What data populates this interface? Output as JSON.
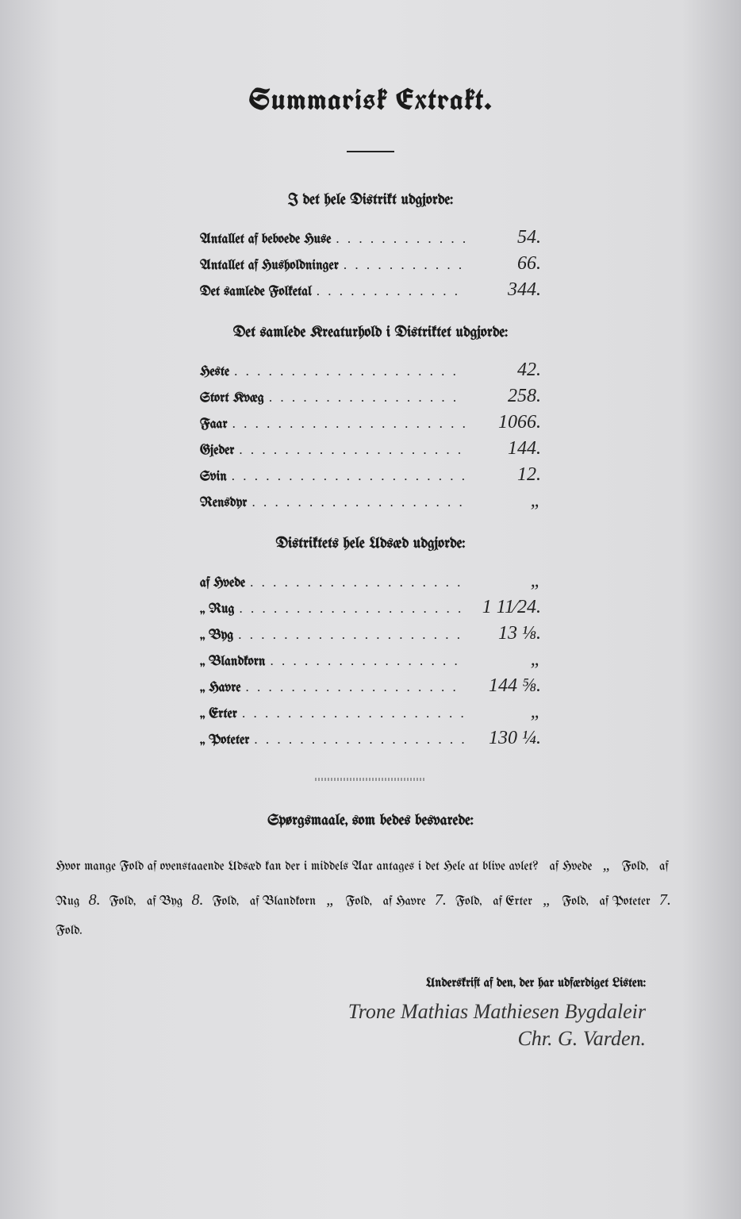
{
  "title": "Summarisk Extrakt.",
  "section1": {
    "heading": "I det hele Distrikt udgjorde:",
    "rows": [
      {
        "label": "Antallet af beboede Huse",
        "value": "54."
      },
      {
        "label": "Antallet af Husholdninger",
        "value": "66."
      },
      {
        "label": "Det samlede Folketal",
        "value": "344."
      }
    ]
  },
  "section2": {
    "heading": "Det samlede Kreaturhold i Distriktet udgjorde:",
    "rows": [
      {
        "label": "Heste",
        "value": "42."
      },
      {
        "label": "Stort Kvæg",
        "value": "258."
      },
      {
        "label": "Faar",
        "value": "1066."
      },
      {
        "label": "Gjeder",
        "value": "144."
      },
      {
        "label": "Svin",
        "value": "12."
      },
      {
        "label": "Rensdyr",
        "value": "„"
      }
    ]
  },
  "section3": {
    "heading": "Distriktets hele Udsæd udgjorde:",
    "rows": [
      {
        "label": "af Hvede",
        "value": "„"
      },
      {
        "label": "„ Rug",
        "value": "1 11⁄24."
      },
      {
        "label": "„ Byg",
        "value": "13 ⅛."
      },
      {
        "label": "„ Blandkorn",
        "value": "„"
      },
      {
        "label": "„ Havre",
        "value": "144 ⅝."
      },
      {
        "label": "„ Erter",
        "value": "„"
      },
      {
        "label": "„ Poteter",
        "value": "130 ¼."
      }
    ]
  },
  "questions": {
    "heading": "Spørgsmaale, som bedes besvarede:",
    "lead": "Hvor mange Fold af ovenstaaende Udsæd kan der i middels Aar antages i det Hele at blive avlet?",
    "items": [
      {
        "label": "af Hvede",
        "value": "„",
        "suffix": "Fold,"
      },
      {
        "label": "af Rug",
        "value": "8.",
        "suffix": "Fold,"
      },
      {
        "label": "af Byg",
        "value": "8.",
        "suffix": "Fold,"
      },
      {
        "label": "af Blandkorn",
        "value": "„",
        "suffix": "Fold,"
      },
      {
        "label": "af Havre",
        "value": "7.",
        "suffix": "Fold,"
      },
      {
        "label": "af Erter",
        "value": "„",
        "suffix": "Fold,"
      },
      {
        "label": "af Poteter",
        "value": "7.",
        "suffix": "Fold."
      }
    ]
  },
  "signature": {
    "heading": "Underskrift af den, der har udfærdiget Listen:",
    "line1": "Trone Mathias Mathiesen Bygdaleir",
    "line2": "Chr. G. Varden."
  }
}
